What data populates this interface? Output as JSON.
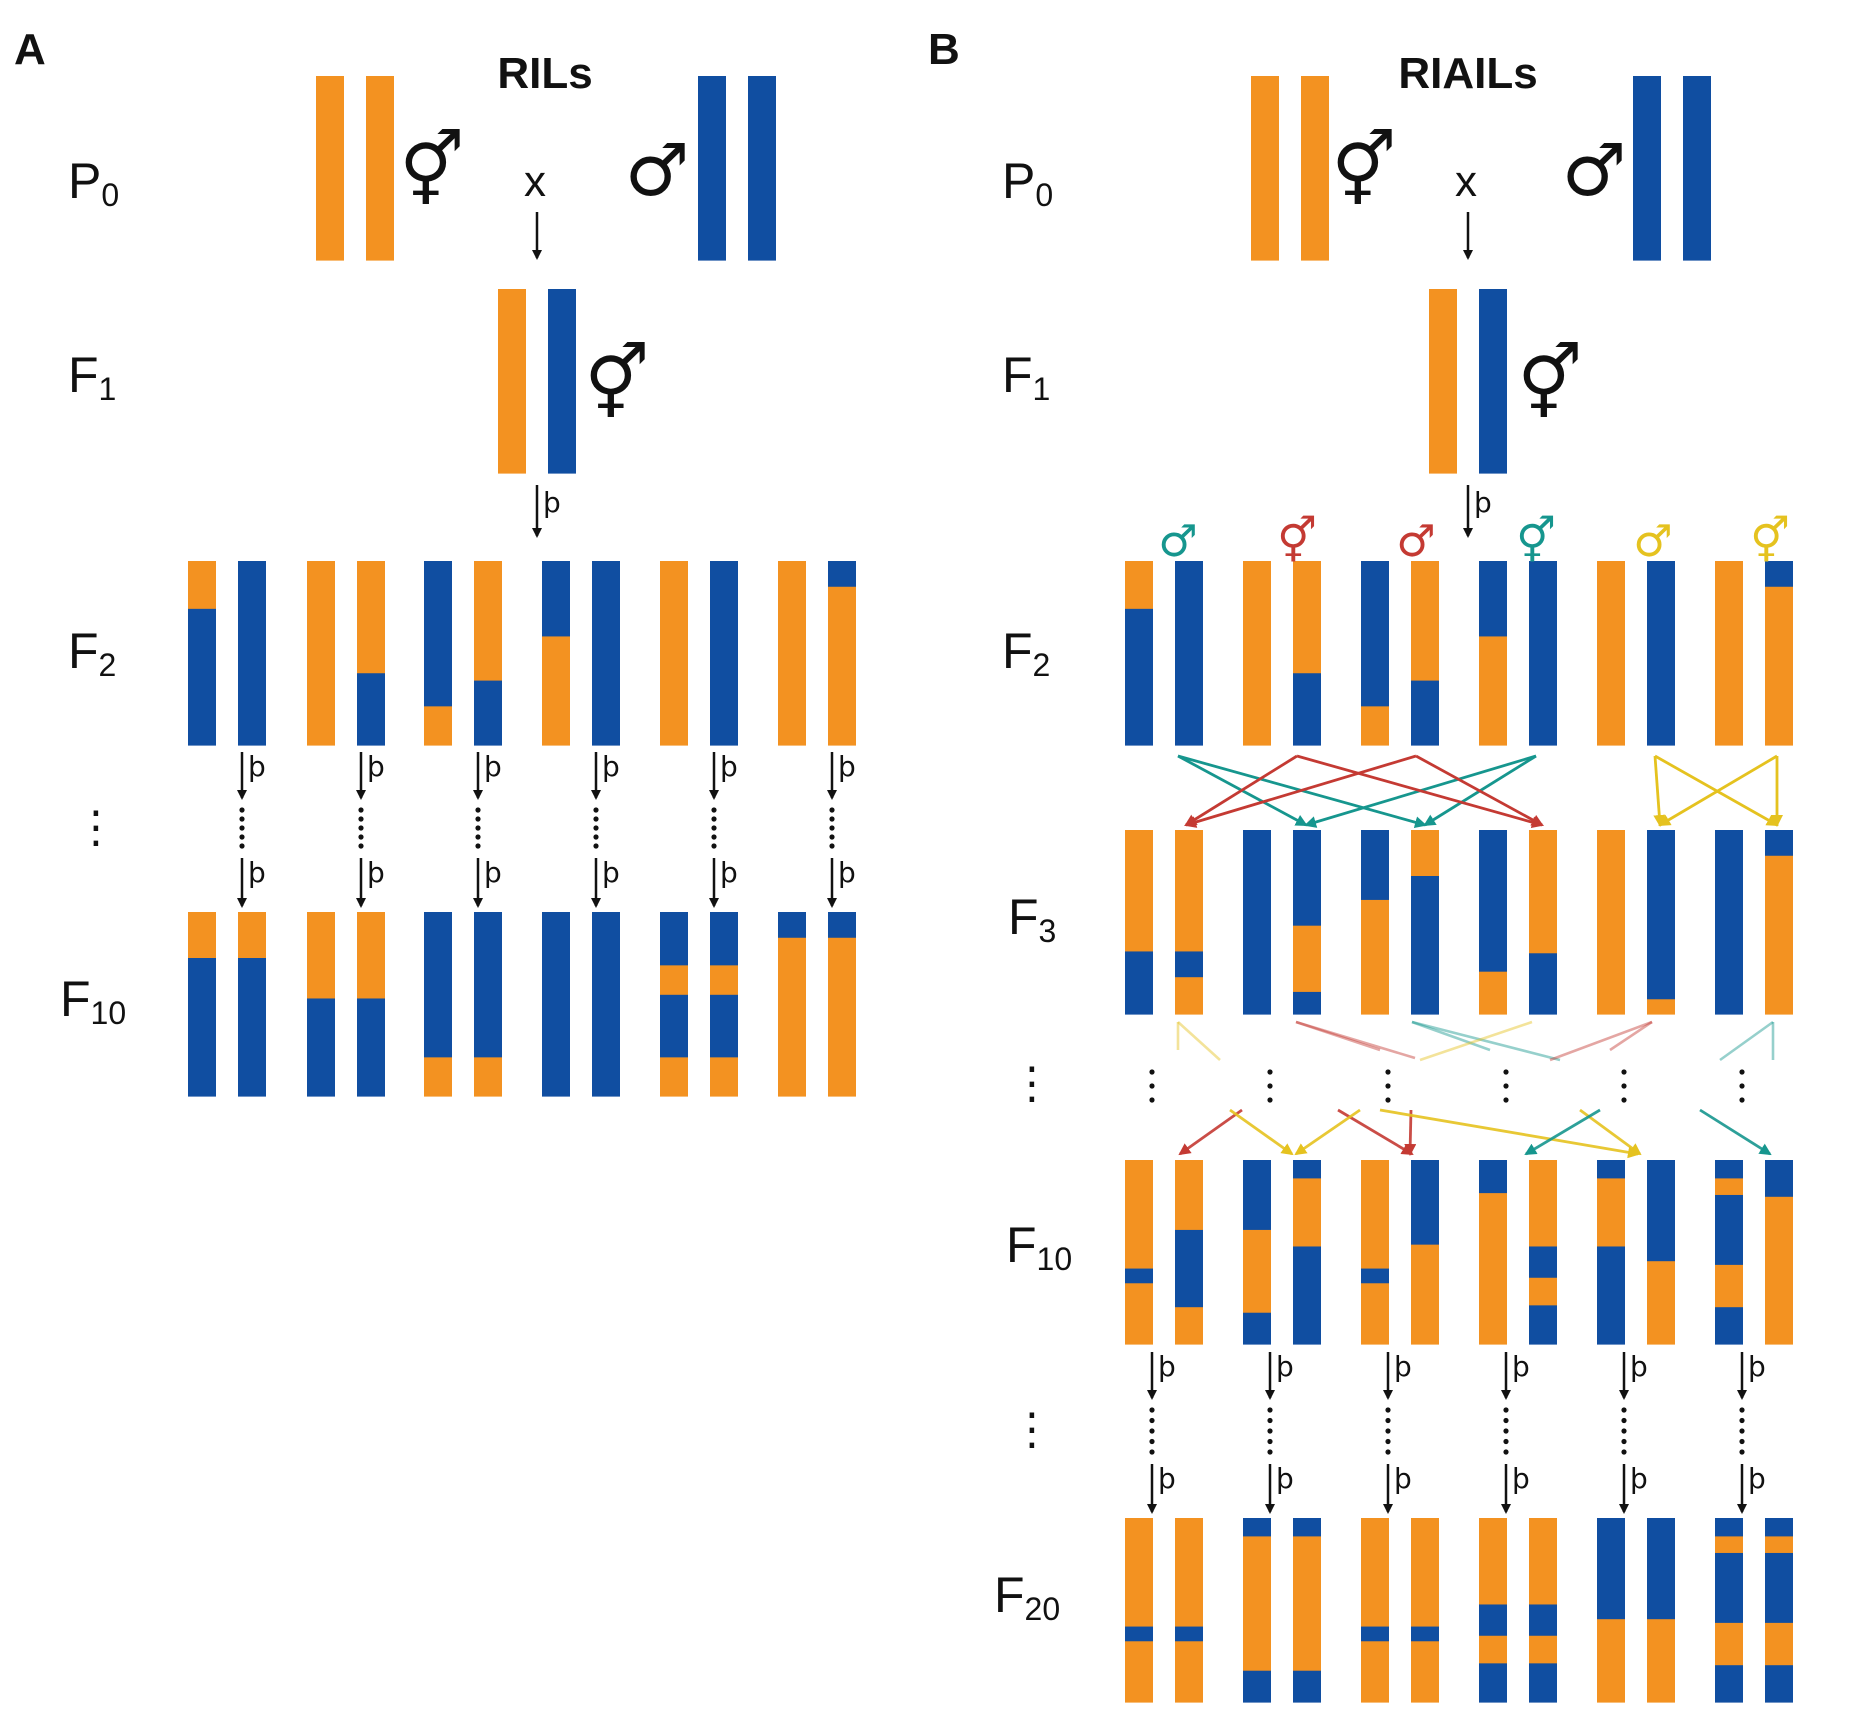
{
  "colors": {
    "orange": "#F39221",
    "blue": "#104EA1",
    "teal": "#16968E",
    "red": "#C43A33",
    "yellow": "#E5C21F",
    "black": "#111111"
  },
  "panels": [
    {
      "letter": "A",
      "title": "RILs"
    },
    {
      "letter": "B",
      "title": "RIAILs"
    }
  ],
  "generations": {
    "p0": {
      "base": "P",
      "sub": "0"
    },
    "f1": {
      "base": "F",
      "sub": "1"
    },
    "f2": {
      "base": "F",
      "sub": "2"
    },
    "f3": {
      "base": "F",
      "sub": "3"
    },
    "f10": {
      "base": "F",
      "sub": "10"
    },
    "f20": {
      "base": "F",
      "sub": "20"
    }
  },
  "symbols": {
    "hermaphrodite": "⚥",
    "male": "♂",
    "cross": "x",
    "selfing": "þ",
    "ellipsis": "⋮"
  },
  "mating_symbols_B": [
    {
      "symbol": "♂",
      "color": "teal"
    },
    {
      "symbol": "⚥",
      "color": "red"
    },
    {
      "symbol": "♂",
      "color": "red"
    },
    {
      "symbol": "⚥",
      "color": "teal"
    },
    {
      "symbol": "♂",
      "color": "yellow"
    },
    {
      "symbol": "⚥",
      "color": "yellow"
    }
  ],
  "chromosomes": {
    "parent_orange": [
      [
        "o",
        1
      ]
    ],
    "parent_blue": [
      [
        "b",
        1
      ]
    ],
    "f1": [
      [
        [
          "o",
          1
        ]
      ],
      [
        [
          "b",
          1
        ]
      ]
    ],
    "f2": [
      [
        [
          [
            "o",
            0.26
          ],
          [
            "b",
            0.74
          ]
        ],
        [
          [
            "b",
            1
          ]
        ]
      ],
      [
        [
          [
            "o",
            1
          ]
        ],
        [
          [
            "o",
            0.61
          ],
          [
            "b",
            0.39
          ]
        ]
      ],
      [
        [
          [
            "b",
            0.79
          ],
          [
            "o",
            0.21
          ]
        ],
        [
          [
            "o",
            0.65
          ],
          [
            "b",
            0.35
          ]
        ]
      ],
      [
        [
          [
            "b",
            0.41
          ],
          [
            "o",
            0.59
          ]
        ],
        [
          [
            "b",
            1
          ]
        ]
      ],
      [
        [
          [
            "o",
            1
          ]
        ],
        [
          [
            "b",
            1
          ]
        ]
      ],
      [
        [
          [
            "o",
            1
          ]
        ],
        [
          [
            "b",
            0.14
          ],
          [
            "o",
            0.86
          ]
        ]
      ]
    ],
    "f3": [
      [
        [
          [
            "o",
            0.66
          ],
          [
            "b",
            0.34
          ]
        ],
        [
          [
            "o",
            0.66
          ],
          [
            "b",
            0.14
          ],
          [
            "o",
            0.2
          ]
        ]
      ],
      [
        [
          [
            "b",
            1
          ]
        ],
        [
          [
            "b",
            0.52
          ],
          [
            "o",
            0.36
          ],
          [
            "b",
            0.12
          ]
        ]
      ],
      [
        [
          [
            "b",
            0.38
          ],
          [
            "o",
            0.62
          ]
        ],
        [
          [
            "o",
            0.25
          ],
          [
            "b",
            0.75
          ]
        ]
      ],
      [
        [
          [
            "b",
            0.77
          ],
          [
            "o",
            0.23
          ]
        ],
        [
          [
            "o",
            0.67
          ],
          [
            "b",
            0.33
          ]
        ]
      ],
      [
        [
          [
            "o",
            1
          ]
        ],
        [
          [
            "b",
            0.92
          ],
          [
            "o",
            0.08
          ]
        ]
      ],
      [
        [
          [
            "b",
            1
          ]
        ],
        [
          [
            "b",
            0.14
          ],
          [
            "o",
            0.86
          ]
        ]
      ]
    ],
    "f10_A": [
      [
        [
          [
            "o",
            0.25
          ],
          [
            "b",
            0.75
          ]
        ],
        [
          [
            "o",
            0.25
          ],
          [
            "b",
            0.75
          ]
        ]
      ],
      [
        [
          [
            "o",
            0.47
          ],
          [
            "b",
            0.53
          ]
        ],
        [
          [
            "o",
            0.47
          ],
          [
            "b",
            0.53
          ]
        ]
      ],
      [
        [
          [
            "b",
            0.79
          ],
          [
            "o",
            0.21
          ]
        ],
        [
          [
            "b",
            0.79
          ],
          [
            "o",
            0.21
          ]
        ]
      ],
      [
        [
          [
            "b",
            1
          ]
        ],
        [
          [
            "b",
            1
          ]
        ]
      ],
      [
        [
          [
            "b",
            0.29
          ],
          [
            "o",
            0.16
          ],
          [
            "b",
            0.34
          ],
          [
            "o",
            0.21
          ]
        ],
        [
          [
            "b",
            0.29
          ],
          [
            "o",
            0.16
          ],
          [
            "b",
            0.34
          ],
          [
            "o",
            0.21
          ]
        ]
      ],
      [
        [
          [
            "b",
            0.14
          ],
          [
            "o",
            0.86
          ]
        ],
        [
          [
            "b",
            0.14
          ],
          [
            "o",
            0.86
          ]
        ]
      ]
    ],
    "f10_B": [
      [
        [
          [
            "o",
            0.59
          ],
          [
            "b",
            0.08
          ],
          [
            "o",
            0.33
          ]
        ],
        [
          [
            "o",
            0.38
          ],
          [
            "b",
            0.42
          ],
          [
            "o",
            0.2
          ]
        ]
      ],
      [
        [
          [
            "b",
            0.38
          ],
          [
            "o",
            0.45
          ],
          [
            "b",
            0.17
          ]
        ],
        [
          [
            "b",
            0.1
          ],
          [
            "o",
            0.37
          ],
          [
            "b",
            0.53
          ]
        ]
      ],
      [
        [
          [
            "o",
            0.59
          ],
          [
            "b",
            0.08
          ],
          [
            "o",
            0.33
          ]
        ],
        [
          [
            "b",
            0.46
          ],
          [
            "o",
            0.54
          ]
        ]
      ],
      [
        [
          [
            "b",
            0.18
          ],
          [
            "o",
            0.82
          ]
        ],
        [
          [
            "o",
            0.47
          ],
          [
            "b",
            0.17
          ],
          [
            "o",
            0.15
          ],
          [
            "b",
            0.21
          ]
        ]
      ],
      [
        [
          [
            "b",
            0.1
          ],
          [
            "o",
            0.37
          ],
          [
            "b",
            0.53
          ]
        ],
        [
          [
            "b",
            0.55
          ],
          [
            "o",
            0.45
          ]
        ]
      ],
      [
        [
          [
            "b",
            0.1
          ],
          [
            "o",
            0.09
          ],
          [
            "b",
            0.38
          ],
          [
            "o",
            0.23
          ],
          [
            "b",
            0.2
          ]
        ],
        [
          [
            "b",
            0.2
          ],
          [
            "o",
            0.8
          ]
        ]
      ]
    ],
    "f20": [
      [
        [
          [
            "o",
            0.59
          ],
          [
            "b",
            0.08
          ],
          [
            "o",
            0.33
          ]
        ],
        [
          [
            "o",
            0.59
          ],
          [
            "b",
            0.08
          ],
          [
            "o",
            0.33
          ]
        ]
      ],
      [
        [
          [
            "b",
            0.1
          ],
          [
            "o",
            0.73
          ],
          [
            "b",
            0.17
          ]
        ],
        [
          [
            "b",
            0.1
          ],
          [
            "o",
            0.73
          ],
          [
            "b",
            0.17
          ]
        ]
      ],
      [
        [
          [
            "o",
            0.59
          ],
          [
            "b",
            0.08
          ],
          [
            "o",
            0.33
          ]
        ],
        [
          [
            "o",
            0.59
          ],
          [
            "b",
            0.08
          ],
          [
            "o",
            0.33
          ]
        ]
      ],
      [
        [
          [
            "o",
            0.47
          ],
          [
            "b",
            0.17
          ],
          [
            "o",
            0.15
          ],
          [
            "b",
            0.21
          ]
        ],
        [
          [
            "o",
            0.47
          ],
          [
            "b",
            0.17
          ],
          [
            "o",
            0.15
          ],
          [
            "b",
            0.21
          ]
        ]
      ],
      [
        [
          [
            "b",
            0.55
          ],
          [
            "o",
            0.45
          ]
        ],
        [
          [
            "b",
            0.55
          ],
          [
            "o",
            0.45
          ]
        ]
      ],
      [
        [
          [
            "b",
            0.1
          ],
          [
            "o",
            0.09
          ],
          [
            "b",
            0.38
          ],
          [
            "o",
            0.23
          ],
          [
            "b",
            0.2
          ]
        ],
        [
          [
            "b",
            0.1
          ],
          [
            "o",
            0.09
          ],
          [
            "b",
            0.38
          ],
          [
            "o",
            0.23
          ],
          [
            "b",
            0.2
          ]
        ]
      ]
    ]
  }
}
